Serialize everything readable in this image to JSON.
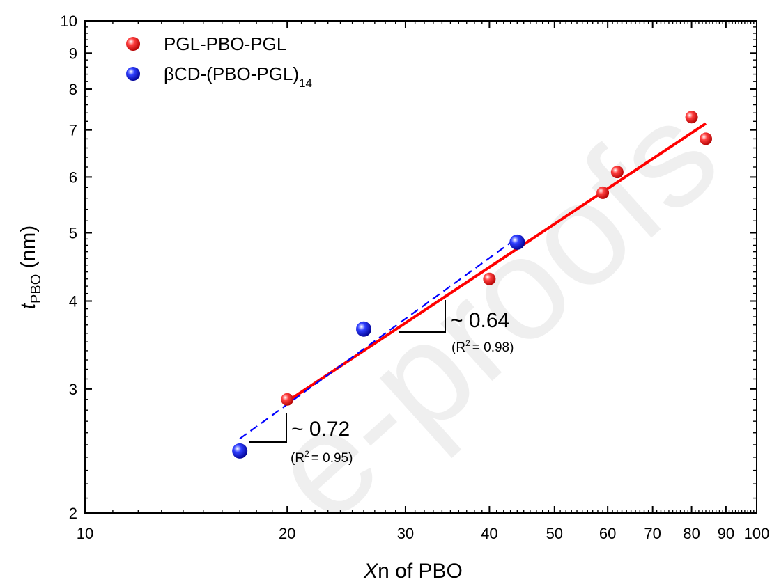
{
  "watermark": "e-proofs",
  "chart_data": {
    "type": "scatter",
    "xscale": "log",
    "yscale": "log",
    "xlim": [
      10,
      100
    ],
    "ylim": [
      2,
      10
    ],
    "xlabel": {
      "italic": "X",
      "rest": "n of PBO"
    },
    "ylabel": {
      "italic": "t",
      "sub": "PBO",
      "rest": " (nm)"
    },
    "xticks": [
      10,
      20,
      30,
      40,
      50,
      60,
      70,
      80,
      90,
      100
    ],
    "xtick_labels": [
      "10",
      "20",
      "30",
      "40",
      "50",
      "60",
      "70",
      "80",
      "90",
      "100"
    ],
    "yticks": [
      2,
      3,
      4,
      5,
      6,
      7,
      8,
      9,
      10
    ],
    "ytick_labels": [
      "2",
      "3",
      "4",
      "5",
      "6",
      "7",
      "8",
      "9",
      "10"
    ],
    "legend_position": "top-left",
    "series": [
      {
        "name": "PGL-PBO-PGL",
        "color": "#ff0000",
        "points": [
          [
            20,
            2.9
          ],
          [
            40,
            4.3
          ],
          [
            59,
            5.7
          ],
          [
            62,
            6.1
          ],
          [
            80,
            7.3
          ],
          [
            84,
            6.8
          ]
        ],
        "fit": {
          "style": "solid",
          "x": [
            20,
            84
          ],
          "y": [
            2.88,
            7.15
          ]
        }
      },
      {
        "name": "βCD-(PBO-PGL)",
        "name_sub": "14",
        "color": "#0000ff",
        "points": [
          [
            17,
            2.45
          ],
          [
            26,
            3.65
          ],
          [
            44,
            4.85
          ]
        ],
        "fit": {
          "style": "dashed",
          "x": [
            17,
            43.5
          ],
          "y": [
            2.55,
            4.88
          ]
        }
      }
    ],
    "annotations": [
      {
        "slope": "~ 0.64",
        "r2": "= 0.98)",
        "r2_prefix": "(R",
        "r2_sup": "2"
      },
      {
        "slope": "~ 0.72",
        "r2": "= 0.95)",
        "r2_prefix": "(R",
        "r2_sup": "2"
      }
    ]
  }
}
